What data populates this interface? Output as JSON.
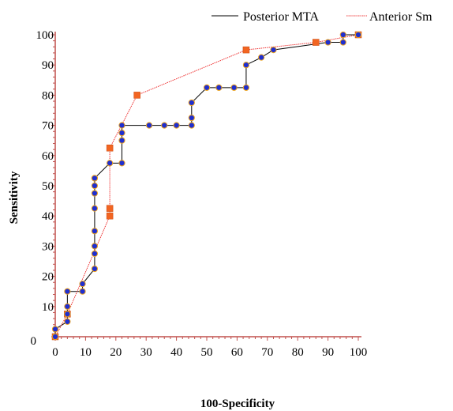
{
  "chart_data": {
    "type": "line",
    "title": "",
    "xlabel": "100-Specificity",
    "ylabel": "Sensitivity",
    "xlim": [
      0,
      100
    ],
    "ylim": [
      0,
      100
    ],
    "x_ticks": [
      0,
      10,
      20,
      30,
      40,
      50,
      60,
      70,
      80,
      90,
      100
    ],
    "y_ticks": [
      10,
      20,
      30,
      40,
      50,
      60,
      70,
      80,
      90,
      100
    ],
    "origin_label": "0",
    "grid": false,
    "legend_position": "top-right",
    "colors": {
      "axis": "#c0504d",
      "posterior_line": "#000000",
      "posterior_marker_fill": "#1f2fd0",
      "posterior_marker_edge": "#e8a020",
      "anterior_line": "#ee3333",
      "anterior_marker_fill": "#f26522"
    },
    "series": [
      {
        "name": "Posterior MTA",
        "x": [
          0,
          0,
          4,
          4,
          4,
          4,
          9,
          9,
          13,
          13,
          13,
          13,
          13,
          13,
          13,
          13,
          13,
          18,
          22,
          22,
          22,
          22,
          31,
          36,
          40,
          45,
          45,
          45,
          50,
          54,
          59,
          63,
          63,
          68,
          72,
          90,
          95,
          95,
          100
        ],
        "y": [
          0,
          2.5,
          5,
          7.5,
          10,
          15,
          15,
          17.5,
          22.5,
          27.5,
          30,
          35,
          42.5,
          47.5,
          50,
          52.5,
          52.5,
          57.5,
          57.5,
          65,
          67.5,
          70,
          70,
          70,
          70,
          70,
          72.5,
          77.5,
          82.5,
          82.5,
          82.5,
          82.5,
          90,
          92.5,
          95,
          97.5,
          97.5,
          100,
          100
        ]
      },
      {
        "name": "Anterior Sm",
        "x": [
          0,
          4,
          18,
          18,
          18,
          27,
          63,
          86,
          100
        ],
        "y": [
          0,
          7.5,
          40,
          42.5,
          62.5,
          80,
          95,
          97.5,
          100
        ]
      }
    ]
  }
}
